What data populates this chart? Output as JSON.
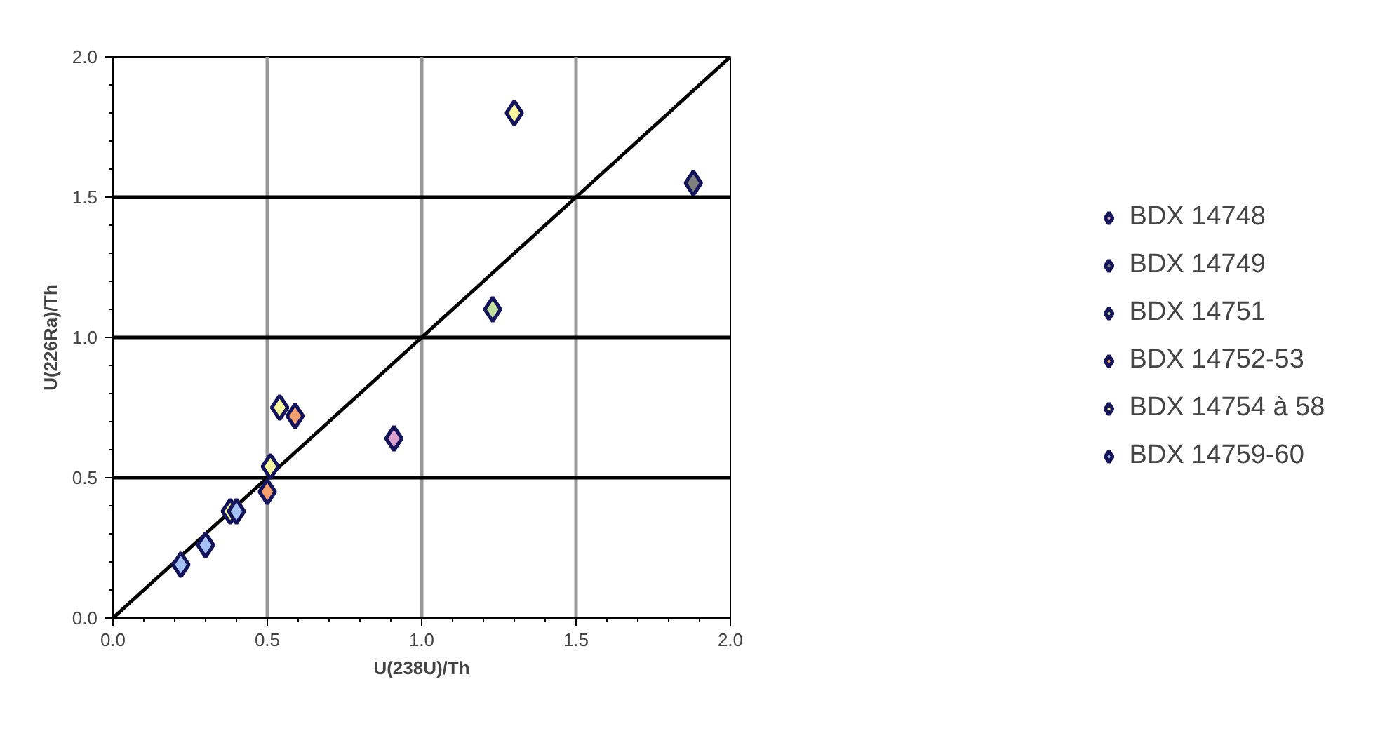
{
  "chart_data": {
    "type": "scatter",
    "xlabel": "U(238U)/Th",
    "ylabel": "U(226Ra)/Th",
    "xlim": [
      0,
      2
    ],
    "ylim": [
      0,
      2
    ],
    "xticks": [
      {
        "value": 0,
        "label": "0.0"
      },
      {
        "value": 0.5,
        "label": "0.5"
      },
      {
        "value": 1,
        "label": "1.0"
      },
      {
        "value": 1.5,
        "label": "1.5"
      },
      {
        "value": 2,
        "label": "2.0"
      }
    ],
    "yticks": [
      {
        "value": 0,
        "label": "0.0"
      },
      {
        "value": 0.5,
        "label": "0.5"
      },
      {
        "value": 1,
        "label": "1.0"
      },
      {
        "value": 1.5,
        "label": "1.5"
      },
      {
        "value": 2,
        "label": "2.0"
      }
    ],
    "grid": true,
    "legend": "right",
    "series": [
      {
        "name": "BDX 14748",
        "color": "#d9a0cc",
        "marker": "diamond",
        "x": [
          0.91
        ],
        "values": [
          0.64
        ]
      },
      {
        "name": "BDX 14749",
        "color": "#7f7f7f",
        "marker": "diamond",
        "x": [
          1.88
        ],
        "values": [
          1.55
        ]
      },
      {
        "name": "BDX 14751",
        "color": "#c3dfa0",
        "marker": "diamond",
        "x": [
          1.23
        ],
        "values": [
          1.1
        ]
      },
      {
        "name": "BDX 14752-53",
        "color": "#f4a070",
        "marker": "diamond",
        "x": [
          0.5,
          0.59
        ],
        "values": [
          0.45,
          0.72
        ]
      },
      {
        "name": "BDX 14754 à 58",
        "color": "#f5f5a0",
        "marker": "diamond",
        "x": [
          0.38,
          0.51,
          0.54,
          1.3
        ],
        "values": [
          0.38,
          0.54,
          0.75,
          1.8
        ]
      },
      {
        "name": "BDX 14759-60",
        "color": "#a4c2f4",
        "marker": "diamond",
        "x": [
          0.22,
          0.3,
          0.4
        ],
        "values": [
          0.19,
          0.26,
          0.38
        ]
      },
      {
        "type": "line",
        "color": "#000000",
        "x": [
          0,
          2
        ],
        "values": [
          0,
          2
        ]
      }
    ]
  }
}
